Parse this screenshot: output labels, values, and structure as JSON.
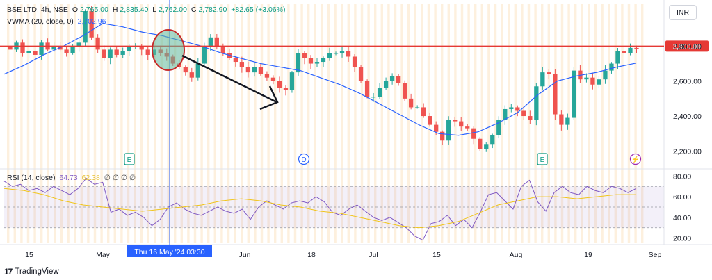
{
  "legend": {
    "symbol": "BSE LTD, 4h, NSE",
    "o_label": "O",
    "o_value": "2,765.00",
    "h_label": "H",
    "h_value": "2,835.40",
    "l_label": "L",
    "l_value": "2,762.00",
    "c_label": "C",
    "c_value": "2,782.90",
    "change": "+82.65 (+3.06%)",
    "vwma_label": "VWMA (20, close, 0)",
    "vwma_value": "2,702.96",
    "rsi_label": "RSI (14, close)",
    "rsi_value": "64.73",
    "rsi_ma_value": "62.38",
    "rsi_extra": "∅ ∅ ∅ ∅"
  },
  "currency": "INR",
  "brand": "TradingView",
  "price_badge": "2,800.00",
  "crosshair_label": "Thu 16 May '24  03:30",
  "event_markers": [
    {
      "label": "E",
      "kind": "earnings",
      "date": "May"
    },
    {
      "label": "D",
      "kind": "dividend",
      "date": "Jun 13"
    },
    {
      "label": "E",
      "kind": "earnings",
      "date": "Aug 8"
    },
    {
      "label": "⚡",
      "kind": "split",
      "date": "Aug 28"
    }
  ],
  "colors": {
    "up": "#26a69a",
    "down": "#ef5350",
    "vwma": "#2962ff",
    "resistance": "#e53935",
    "rsi": "#7e57c2",
    "rsi_ma": "#f0c419",
    "crosshair": "#2962ff",
    "shade": "#fbe3c3"
  },
  "chart_data": [
    {
      "type": "candlestick",
      "title": "BSE LTD, 4h, NSE",
      "x_ticks": [
        "15",
        "May",
        "Jun",
        "18",
        "Jul",
        "15",
        "Aug",
        "19",
        "Sep"
      ],
      "y_ticks": [
        "2,200.00",
        "2,400.00",
        "2,600.00",
        "2,800.00"
      ],
      "ylim": [
        2110,
        3040
      ],
      "resistance_level": 2800,
      "series": [
        {
          "name": "BSE LTD",
          "kind": "ohlc_path",
          "values": [
            2800,
            2780,
            2820,
            2760,
            2770,
            2750,
            2820,
            2780,
            2800,
            2780,
            2760,
            2800,
            2820,
            3000,
            2850,
            2780,
            2730,
            2780,
            2750,
            2770,
            2800,
            2800,
            2780,
            2750,
            2780,
            2760,
            2740,
            2700,
            2680,
            2650,
            2620,
            2700,
            2800,
            2850,
            2800,
            2760,
            2730,
            2710,
            2680,
            2650,
            2680,
            2640,
            2620,
            2600,
            2560,
            2550,
            2650,
            2760,
            2730,
            2700,
            2710,
            2730,
            2760,
            2760,
            2770,
            2740,
            2680,
            2600,
            2510,
            2510,
            2560,
            2600,
            2630,
            2590,
            2500,
            2450,
            2450,
            2400,
            2350,
            2310,
            2260,
            2380,
            2370,
            2340,
            2330,
            2270,
            2210,
            2240,
            2290,
            2380,
            2440,
            2450,
            2430,
            2400,
            2380,
            2570,
            2650,
            2640,
            2410,
            2350,
            2390,
            2660,
            2610,
            2620,
            2580,
            2610,
            2660,
            2700,
            2770,
            2760,
            2790,
            2783
          ]
        },
        {
          "name": "VWMA (20, close, 0)",
          "kind": "line",
          "values": [
            2640,
            2690,
            2750,
            2800,
            2860,
            2930,
            2910,
            2880,
            2860,
            2830,
            2800,
            2760,
            2730,
            2700,
            2680,
            2660,
            2620,
            2580,
            2530,
            2470,
            2410,
            2350,
            2300,
            2290,
            2310,
            2360,
            2420,
            2520,
            2600,
            2630,
            2650,
            2680,
            2703
          ]
        }
      ]
    },
    {
      "type": "line",
      "title": "RSI (14, close)",
      "y_ticks": [
        "20.00",
        "40.00",
        "60.00",
        "80.00"
      ],
      "ylim": [
        15,
        85
      ],
      "bands": [
        30,
        70
      ],
      "series": [
        {
          "name": "RSI",
          "values": [
            75,
            70,
            72,
            66,
            68,
            64,
            70,
            66,
            62,
            68,
            78,
            72,
            74,
            45,
            48,
            42,
            45,
            40,
            32,
            38,
            50,
            54,
            48,
            44,
            42,
            46,
            50,
            46,
            44,
            48,
            38,
            50,
            56,
            52,
            48,
            54,
            56,
            54,
            60,
            55,
            45,
            42,
            48,
            52,
            46,
            40,
            37,
            40,
            35,
            30,
            22,
            18,
            34,
            36,
            42,
            32,
            38,
            30,
            45,
            62,
            64,
            56,
            48,
            70,
            76,
            55,
            46,
            64,
            70,
            64,
            62,
            70,
            66,
            64,
            70,
            68,
            64,
            68
          ]
        },
        {
          "name": "RSI MA",
          "values": [
            68,
            66,
            62,
            56,
            52,
            50,
            48,
            46,
            48,
            50,
            52,
            56,
            58,
            56,
            52,
            50,
            46,
            44,
            40,
            36,
            32,
            30,
            32,
            36,
            44,
            52,
            56,
            60,
            60,
            58,
            60,
            62,
            62
          ]
        }
      ]
    }
  ]
}
